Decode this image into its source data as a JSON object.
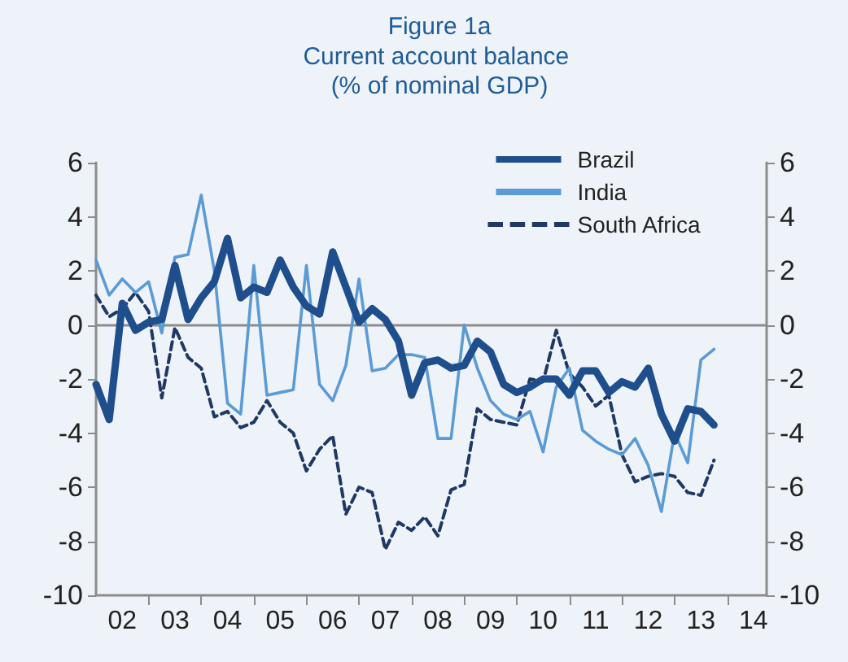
{
  "chart_data": {
    "type": "line",
    "title": "Figure 1a",
    "subtitle": "Current account balance (% of nominal GDP)",
    "x": [
      2001.5,
      2001.75,
      2002,
      2002.25,
      2002.5,
      2002.75,
      2003,
      2003.25,
      2003.5,
      2003.75,
      2004,
      2004.25,
      2004.5,
      2004.75,
      2005,
      2005.25,
      2005.5,
      2005.75,
      2006,
      2006.25,
      2006.5,
      2006.75,
      2007,
      2007.25,
      2007.5,
      2007.75,
      2008,
      2008.25,
      2008.5,
      2008.75,
      2009,
      2009.25,
      2009.5,
      2009.75,
      2010,
      2010.25,
      2010.5,
      2010.75,
      2011,
      2011.25,
      2011.5,
      2011.75,
      2012,
      2012.25,
      2012.5,
      2012.75,
      2013,
      2013.25
    ],
    "series": [
      {
        "name": "Brazil",
        "color": "#1f4e8c",
        "line_style": "solid",
        "values": [
          -2.2,
          -3.5,
          0.8,
          -0.2,
          0.1,
          0.2,
          2.2,
          0.2,
          1.0,
          1.6,
          3.2,
          1.0,
          1.4,
          1.2,
          2.4,
          1.4,
          0.7,
          0.4,
          2.7,
          1.4,
          0.1,
          0.6,
          0.2,
          -0.6,
          -2.6,
          -1.4,
          -1.3,
          -1.6,
          -1.5,
          -0.6,
          -1.0,
          -2.2,
          -2.5,
          -2.3,
          -2.0,
          -2.0,
          -2.6,
          -1.7,
          -1.7,
          -2.5,
          -2.1,
          -2.3,
          -1.6,
          -3.3,
          -4.3,
          -3.1,
          -3.2,
          -3.7
        ]
      },
      {
        "name": "India",
        "color": "#5b9bd5",
        "line_style": "solid",
        "values": [
          2.4,
          1.1,
          1.7,
          1.2,
          1.6,
          -0.3,
          2.5,
          2.6,
          4.8,
          2.0,
          -2.9,
          -3.3,
          2.2,
          -2.6,
          -2.5,
          -2.4,
          2.2,
          -2.2,
          -2.8,
          -1.5,
          1.7,
          -1.7,
          -1.6,
          -1.1,
          -1.1,
          -1.2,
          -4.2,
          -4.2,
          0.0,
          -1.6,
          -2.8,
          -3.3,
          -3.5,
          -3.2,
          -4.7,
          -2.3,
          -1.6,
          -3.9,
          -4.3,
          -4.6,
          -4.8,
          -4.2,
          -5.2,
          -6.9,
          -4.0,
          -5.1,
          -1.3,
          -0.9
        ]
      },
      {
        "name": "South Africa",
        "color": "#1f3864",
        "line_style": "dashed",
        "values": [
          1.1,
          0.3,
          0.6,
          1.2,
          0.5,
          -2.7,
          -0.1,
          -1.2,
          -1.6,
          -3.4,
          -3.2,
          -3.8,
          -3.6,
          -2.8,
          -3.6,
          -4.0,
          -5.4,
          -4.6,
          -4.1,
          -7.0,
          -6.0,
          -6.2,
          -8.3,
          -7.3,
          -7.6,
          -7.1,
          -7.8,
          -6.1,
          -5.9,
          -3.1,
          -3.5,
          -3.6,
          -3.7,
          -2.0,
          -2.1,
          -0.2,
          -1.8,
          -2.3,
          -3.0,
          -2.6,
          -4.8,
          -5.8,
          -5.6,
          -5.5,
          -5.6,
          -6.2,
          -6.3,
          -5.0
        ]
      }
    ],
    "xlim": [
      2001.5,
      2014.25
    ],
    "xticks": [
      {
        "value": 2002.5,
        "label": null
      },
      {
        "value": 2003.5,
        "label": null
      },
      {
        "value": 2004.5,
        "label": null
      },
      {
        "value": 2005.5,
        "label": null
      },
      {
        "value": 2006.5,
        "label": null
      },
      {
        "value": 2007.5,
        "label": null
      },
      {
        "value": 2008.5,
        "label": null
      },
      {
        "value": 2009.5,
        "label": null
      },
      {
        "value": 2010.5,
        "label": null
      },
      {
        "value": 2011.5,
        "label": null
      },
      {
        "value": 2012.5,
        "label": null
      },
      {
        "value": 2013.5,
        "label": null
      },
      {
        "value": 2002,
        "label": "02"
      },
      {
        "value": 2003,
        "label": "03"
      },
      {
        "value": 2004,
        "label": "04"
      },
      {
        "value": 2005,
        "label": "05"
      },
      {
        "value": 2006,
        "label": "06"
      },
      {
        "value": 2007,
        "label": "07"
      },
      {
        "value": 2008,
        "label": "08"
      },
      {
        "value": 2009,
        "label": "09"
      },
      {
        "value": 2010,
        "label": "10"
      },
      {
        "value": 2011,
        "label": "11"
      },
      {
        "value": 2012,
        "label": "12"
      },
      {
        "value": 2013,
        "label": "13"
      },
      {
        "value": 2014,
        "label": "14"
      }
    ],
    "ylim": [
      -10,
      6
    ],
    "yticks": [
      -10,
      -8,
      -6,
      -4,
      -2,
      0,
      2,
      4,
      6
    ],
    "y2lim": [
      -10,
      6
    ],
    "y2ticks": [
      -10,
      -8,
      -6,
      -4,
      -2,
      0,
      2,
      4,
      6
    ],
    "ref_lines": [
      {
        "axis": "y",
        "value": 0,
        "color": "#8c8c8c"
      }
    ],
    "grid": false,
    "legend": "top right",
    "marker": "none"
  }
}
